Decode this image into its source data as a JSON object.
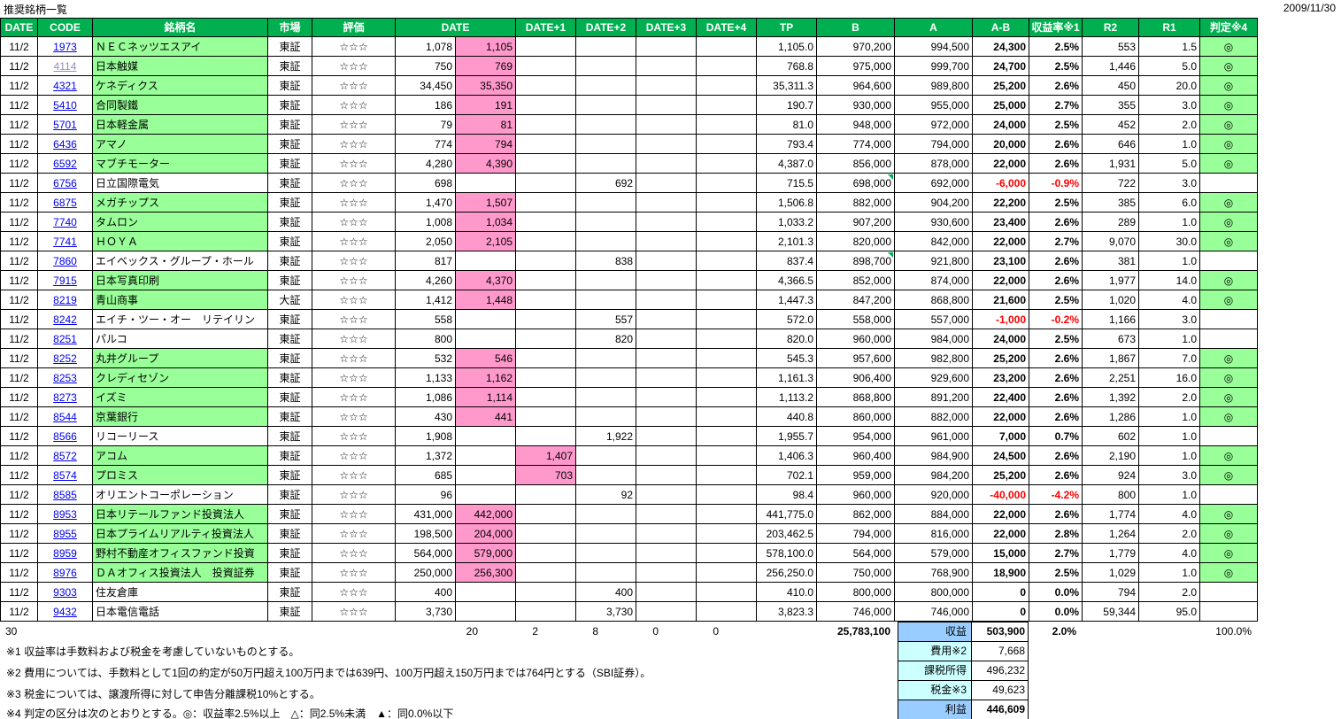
{
  "header": {
    "title": "推奨銘柄一覧",
    "date": "2009/11/30"
  },
  "table": {
    "headers": [
      "DATE",
      "CODE",
      "銘柄名",
      "市場",
      "評価",
      "DATE",
      "DATE+1",
      "DATE+2",
      "DATE+3",
      "DATE+4",
      "TP",
      "B",
      "A",
      "A-B",
      "収益率※1",
      "R2",
      "R1",
      "判定※4"
    ],
    "rows": [
      {
        "date": "11/2",
        "code": "1973",
        "name": "ＮＥＣネッツエスアイ",
        "hl": true,
        "market": "東証",
        "rating": "☆☆☆",
        "p0": "1,078",
        "p0b": "1,105",
        "tp": "1,105.0",
        "b": "970,200",
        "a": "994,500",
        "ab": "24,300",
        "yield": "2.5%",
        "r2": "553",
        "r1": "1.5",
        "judge": "◎"
      },
      {
        "date": "11/2",
        "code": "4114",
        "visited": true,
        "name": "日本触媒",
        "hl": true,
        "market": "東証",
        "rating": "☆☆☆",
        "p0": "750",
        "p0b": "769",
        "tp": "768.8",
        "b": "975,000",
        "a": "999,700",
        "ab": "24,700",
        "yield": "2.5%",
        "r2": "1,446",
        "r1": "5.0",
        "judge": "◎"
      },
      {
        "date": "11/2",
        "code": "4321",
        "name": "ケネディクス",
        "hl": true,
        "market": "東証",
        "rating": "☆☆☆",
        "p0": "34,450",
        "p0b": "35,350",
        "tp": "35,311.3",
        "b": "964,600",
        "a": "989,800",
        "ab": "25,200",
        "yield": "2.6%",
        "r2": "450",
        "r1": "20.0",
        "judge": "◎"
      },
      {
        "date": "11/2",
        "code": "5410",
        "name": "合同製鐵",
        "hl": true,
        "market": "東証",
        "rating": "☆☆☆",
        "p0": "186",
        "p0b": "191",
        "tp": "190.7",
        "b": "930,000",
        "a": "955,000",
        "ab": "25,000",
        "yield": "2.7%",
        "r2": "355",
        "r1": "3.0",
        "judge": "◎"
      },
      {
        "date": "11/2",
        "code": "5701",
        "name": "日本軽金属",
        "hl": true,
        "market": "東証",
        "rating": "☆☆☆",
        "p0": "79",
        "p0b": "81",
        "tp": "81.0",
        "b": "948,000",
        "a": "972,000",
        "ab": "24,000",
        "yield": "2.5%",
        "r2": "452",
        "r1": "2.0",
        "judge": "◎"
      },
      {
        "date": "11/2",
        "code": "6436",
        "name": "アマノ",
        "hl": true,
        "market": "東証",
        "rating": "☆☆☆",
        "p0": "774",
        "p0b": "794",
        "tp": "793.4",
        "b": "774,000",
        "a": "794,000",
        "ab": "20,000",
        "yield": "2.6%",
        "r2": "646",
        "r1": "1.0",
        "judge": "◎"
      },
      {
        "date": "11/2",
        "code": "6592",
        "name": "マブチモーター",
        "hl": true,
        "market": "東証",
        "rating": "☆☆☆",
        "p0": "4,280",
        "p0b": "4,390",
        "tp": "4,387.0",
        "b": "856,000",
        "a": "878,000",
        "ab": "22,000",
        "yield": "2.6%",
        "r2": "1,931",
        "r1": "5.0",
        "judge": "◎"
      },
      {
        "date": "11/2",
        "code": "6756",
        "name": "日立国際電気",
        "market": "東証",
        "rating": "☆☆☆",
        "p0": "698",
        "d2": "692",
        "tp": "715.5",
        "b": "698,000",
        "b_mark": true,
        "a": "692,000",
        "ab": "-6,000",
        "yield": "-0.9%",
        "r2": "722",
        "r1": "3.0"
      },
      {
        "date": "11/2",
        "code": "6875",
        "name": "メガチップス",
        "hl": true,
        "market": "東証",
        "rating": "☆☆☆",
        "p0": "1,470",
        "p0b": "1,507",
        "tp": "1,506.8",
        "b": "882,000",
        "a": "904,200",
        "ab": "22,200",
        "yield": "2.5%",
        "r2": "385",
        "r1": "6.0",
        "judge": "◎"
      },
      {
        "date": "11/2",
        "code": "7740",
        "name": "タムロン",
        "hl": true,
        "market": "東証",
        "rating": "☆☆☆",
        "p0": "1,008",
        "p0b": "1,034",
        "tp": "1,033.2",
        "b": "907,200",
        "a": "930,600",
        "ab": "23,400",
        "yield": "2.6%",
        "r2": "289",
        "r1": "1.0",
        "judge": "◎"
      },
      {
        "date": "11/2",
        "code": "7741",
        "name": "ＨＯＹＡ",
        "hl": true,
        "market": "東証",
        "rating": "☆☆☆",
        "p0": "2,050",
        "p0b": "2,105",
        "tp": "2,101.3",
        "b": "820,000",
        "a": "842,000",
        "ab": "22,000",
        "yield": "2.7%",
        "r2": "9,070",
        "r1": "30.0",
        "judge": "◎"
      },
      {
        "date": "11/2",
        "code": "7860",
        "name": "エイベックス・グループ・ホール",
        "market": "東証",
        "rating": "☆☆☆",
        "p0": "817",
        "d2": "838",
        "tp": "837.4",
        "b": "898,700",
        "b_mark": true,
        "a": "921,800",
        "ab": "23,100",
        "yield": "2.6%",
        "r2": "381",
        "r1": "1.0"
      },
      {
        "date": "11/2",
        "code": "7915",
        "name": "日本写真印刷",
        "hl": true,
        "market": "東証",
        "rating": "☆☆☆",
        "p0": "4,260",
        "p0b": "4,370",
        "tp": "4,366.5",
        "b": "852,000",
        "a": "874,000",
        "ab": "22,000",
        "yield": "2.6%",
        "r2": "1,977",
        "r1": "14.0",
        "judge": "◎"
      },
      {
        "date": "11/2",
        "code": "8219",
        "name": "青山商事",
        "hl": true,
        "market": "大証",
        "rating": "☆☆☆",
        "p0": "1,412",
        "p0b": "1,448",
        "tp": "1,447.3",
        "b": "847,200",
        "a": "868,800",
        "ab": "21,600",
        "yield": "2.5%",
        "r2": "1,020",
        "r1": "4.0",
        "judge": "◎"
      },
      {
        "date": "11/2",
        "code": "8242",
        "name": "エイチ・ツー・オー　リテイリン",
        "market": "東証",
        "rating": "☆☆☆",
        "p0": "558",
        "d2": "557",
        "tp": "572.0",
        "b": "558,000",
        "a": "557,000",
        "ab": "-1,000",
        "yield": "-0.2%",
        "r2": "1,166",
        "r1": "3.0"
      },
      {
        "date": "11/2",
        "code": "8251",
        "name": "パルコ",
        "market": "東証",
        "rating": "☆☆☆",
        "p0": "800",
        "d2": "820",
        "tp": "820.0",
        "b": "960,000",
        "a": "984,000",
        "ab": "24,000",
        "yield": "2.5%",
        "r2": "673",
        "r1": "1.0"
      },
      {
        "date": "11/2",
        "code": "8252",
        "name": "丸井グループ",
        "hl": true,
        "market": "東証",
        "rating": "☆☆☆",
        "p0": "532",
        "p0b": "546",
        "tp": "545.3",
        "b": "957,600",
        "a": "982,800",
        "ab": "25,200",
        "yield": "2.6%",
        "r2": "1,867",
        "r1": "7.0",
        "judge": "◎"
      },
      {
        "date": "11/2",
        "code": "8253",
        "name": "クレディセゾン",
        "hl": true,
        "market": "東証",
        "rating": "☆☆☆",
        "p0": "1,133",
        "p0b": "1,162",
        "tp": "1,161.3",
        "b": "906,400",
        "a": "929,600",
        "ab": "23,200",
        "yield": "2.6%",
        "r2": "2,251",
        "r1": "16.0",
        "judge": "◎"
      },
      {
        "date": "11/2",
        "code": "8273",
        "name": "イズミ",
        "hl": true,
        "market": "東証",
        "rating": "☆☆☆",
        "p0": "1,086",
        "p0b": "1,114",
        "tp": "1,113.2",
        "b": "868,800",
        "a": "891,200",
        "ab": "22,400",
        "yield": "2.6%",
        "r2": "1,392",
        "r1": "2.0",
        "judge": "◎"
      },
      {
        "date": "11/2",
        "code": "8544",
        "name": "京葉銀行",
        "hl": true,
        "market": "東証",
        "rating": "☆☆☆",
        "p0": "430",
        "p0b": "441",
        "tp": "440.8",
        "b": "860,000",
        "a": "882,000",
        "ab": "22,000",
        "yield": "2.6%",
        "r2": "1,286",
        "r1": "1.0",
        "judge": "◎"
      },
      {
        "date": "11/2",
        "code": "8566",
        "name": "リコーリース",
        "market": "東証",
        "rating": "☆☆☆",
        "p0": "1,908",
        "d2": "1,922",
        "tp": "1,955.7",
        "b": "954,000",
        "a": "961,000",
        "ab": "7,000",
        "yield": "0.7%",
        "r2": "602",
        "r1": "1.0"
      },
      {
        "date": "11/2",
        "code": "8572",
        "name": "アコム",
        "hl": true,
        "market": "東証",
        "rating": "☆☆☆",
        "p0": "1,372",
        "d1": "1,407",
        "tp": "1,406.3",
        "b": "960,400",
        "a": "984,900",
        "ab": "24,500",
        "yield": "2.6%",
        "r2": "2,190",
        "r1": "1.0",
        "judge": "◎"
      },
      {
        "date": "11/2",
        "code": "8574",
        "name": "プロミス",
        "hl": true,
        "market": "東証",
        "rating": "☆☆☆",
        "p0": "685",
        "d1": "703",
        "tp": "702.1",
        "b": "959,000",
        "a": "984,200",
        "ab": "25,200",
        "yield": "2.6%",
        "r2": "924",
        "r1": "3.0",
        "judge": "◎"
      },
      {
        "date": "11/2",
        "code": "8585",
        "name": "オリエントコーポレーション",
        "market": "東証",
        "rating": "☆☆☆",
        "p0": "96",
        "d2": "92",
        "tp": "98.4",
        "b": "960,000",
        "a": "920,000",
        "ab": "-40,000",
        "yield": "-4.2%",
        "r2": "800",
        "r1": "1.0"
      },
      {
        "date": "11/2",
        "code": "8953",
        "name": "日本リテールファンド投資法人",
        "hl": true,
        "market": "東証",
        "rating": "☆☆☆",
        "p0": "431,000",
        "p0b": "442,000",
        "tp": "441,775.0",
        "b": "862,000",
        "a": "884,000",
        "ab": "22,000",
        "yield": "2.6%",
        "r2": "1,774",
        "r1": "4.0",
        "judge": "◎"
      },
      {
        "date": "11/2",
        "code": "8955",
        "name": "日本プライムリアルティ投資法人",
        "hl": true,
        "market": "東証",
        "rating": "☆☆☆",
        "p0": "198,500",
        "p0b": "204,000",
        "tp": "203,462.5",
        "b": "794,000",
        "a": "816,000",
        "ab": "22,000",
        "yield": "2.8%",
        "r2": "1,264",
        "r1": "2.0",
        "judge": "◎"
      },
      {
        "date": "11/2",
        "code": "8959",
        "name": "野村不動産オフィスファンド投資",
        "hl": true,
        "market": "東証",
        "rating": "☆☆☆",
        "p0": "564,000",
        "p0b": "579,000",
        "tp": "578,100.0",
        "b": "564,000",
        "a": "579,000",
        "ab": "15,000",
        "yield": "2.7%",
        "r2": "1,779",
        "r1": "4.0",
        "judge": "◎"
      },
      {
        "date": "11/2",
        "code": "8976",
        "name": "ＤＡオフィス投資法人　投資証券",
        "hl": true,
        "market": "東証",
        "rating": "☆☆☆",
        "p0": "250,000",
        "p0b": "256,300",
        "tp": "256,250.0",
        "b": "750,000",
        "a": "768,900",
        "ab": "18,900",
        "yield": "2.5%",
        "r2": "1,029",
        "r1": "1.0",
        "judge": "◎"
      },
      {
        "date": "11/2",
        "code": "9303",
        "name": "住友倉庫",
        "market": "東証",
        "rating": "☆☆☆",
        "p0": "400",
        "d2": "400",
        "tp": "410.0",
        "b": "800,000",
        "a": "800,000",
        "ab": "0",
        "yield": "0.0%",
        "r2": "794",
        "r1": "2.0"
      },
      {
        "date": "11/2",
        "code": "9432",
        "name": "日本電信電話",
        "market": "東証",
        "rating": "☆☆☆",
        "p0": "3,730",
        "d2": "3,730",
        "tp": "3,823.3",
        "b": "746,000",
        "a": "746,000",
        "ab": "0",
        "yield": "0.0%",
        "r2": "59,344",
        "r1": "95.0"
      }
    ]
  },
  "totals": {
    "count": "30",
    "d0b": "20",
    "d1": "2",
    "d2": "8",
    "d3": "0",
    "d4": "0",
    "b_total": "25,783,100",
    "yield_total": "2.0%",
    "judge_total": "100.0%"
  },
  "summary": {
    "rows": [
      {
        "label": "収益",
        "value": "503,900"
      },
      {
        "label": "費用※2",
        "value": "7,668"
      },
      {
        "label": "課税所得",
        "value": "496,232"
      },
      {
        "label": "税金※3",
        "value": "49,623"
      },
      {
        "label": "利益",
        "value": "446,609"
      }
    ]
  },
  "footnotes": [
    "※1 収益率は手数料および税金を考慮していないものとする。",
    "※2 費用については、手数料として1回の約定が50万円超え100万円までは639円、100万円超え150万円までは764円とする（SBI証券）。",
    "※3 税金については、譲渡所得に対して申告分離課税10%とする。",
    "※4 判定の区分は次のとおりとする。◎：収益率2.5%以上　△：同2.5%未満　▲：同0.0%以下"
  ],
  "colors": {
    "header_green": "#00B050",
    "highlight_green": "#99FF99",
    "signal_pink": "#FF99CC",
    "link_blue": "#0000EE",
    "visited_link": "#9090B8",
    "negative_red": "#FF0000",
    "summary_blue": "#99CCFF",
    "summary_cyan": "#CCFFFF"
  }
}
